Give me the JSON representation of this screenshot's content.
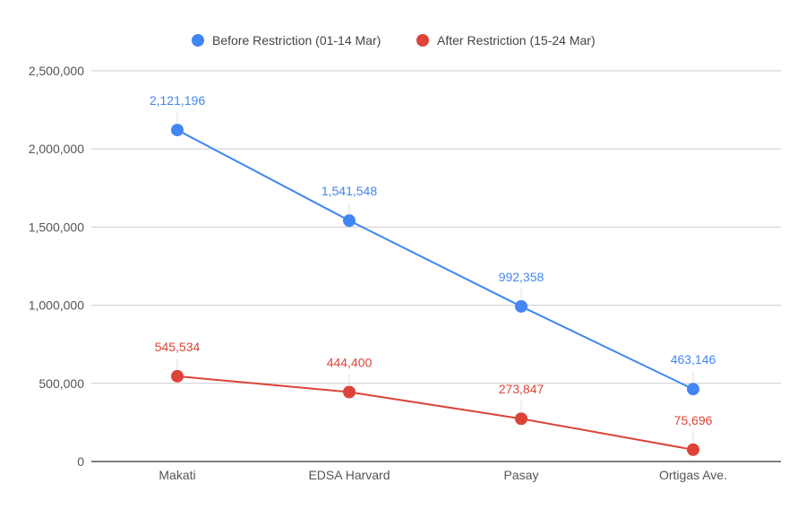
{
  "chart_data": {
    "type": "line",
    "categories": [
      "Makati",
      "EDSA Harvard",
      "Pasay",
      "Ortigas Ave."
    ],
    "series": [
      {
        "name": "Before Restriction (01-14 Mar)",
        "color": "#4285F4",
        "values": [
          2121196,
          1541548,
          992358,
          463146
        ],
        "labels": [
          "2,121,196",
          "1,541,548",
          "992,358",
          "463,146"
        ]
      },
      {
        "name": "After Restriction (15-24 Mar)",
        "color": "#DB4437",
        "values": [
          545534,
          444400,
          273847,
          75696
        ],
        "labels": [
          "545,534",
          "444,400",
          "273,847",
          "75,696"
        ]
      }
    ],
    "ylim": [
      0,
      2500000
    ],
    "yticks": [
      0,
      500000,
      1000000,
      1500000,
      2000000,
      2500000
    ],
    "ytick_labels": [
      "0",
      "500,000",
      "1,000,000",
      "1,500,000",
      "2,000,000",
      "2,500,000"
    ],
    "grid": true,
    "legend": "top-center",
    "title": "",
    "xlabel": "",
    "ylabel": ""
  }
}
